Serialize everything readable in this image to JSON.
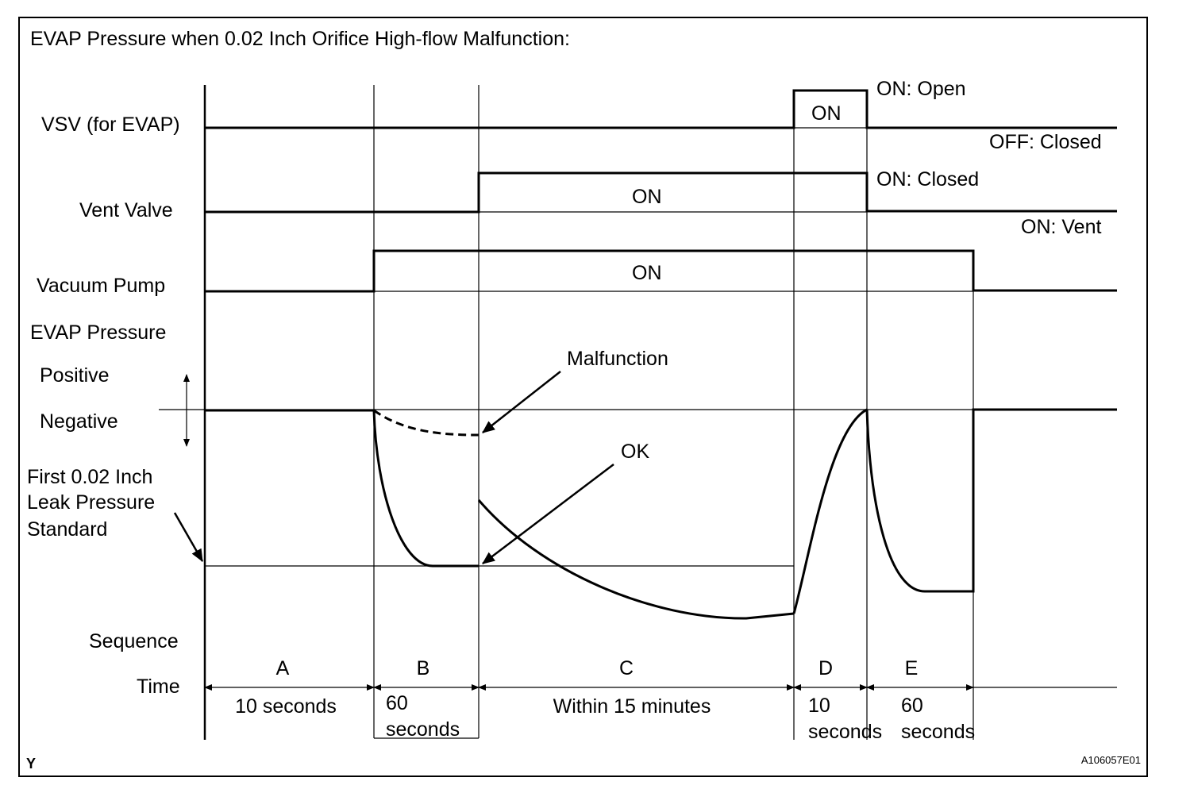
{
  "title": "EVAP Pressure when 0.02 Inch Orifice High-flow Malfunction:",
  "rows": {
    "vsv": "VSV (for EVAP)",
    "vent_valve": "Vent Valve",
    "vacuum_pump": "Vacuum Pump",
    "evap_pressure": "EVAP Pressure",
    "positive": "Positive",
    "negative": "Negative",
    "leak_standard_line1": "First 0.02 Inch",
    "leak_standard_line2": "Leak Pressure",
    "leak_standard_line3": "Standard",
    "sequence": "Sequence",
    "time": "Time"
  },
  "states": {
    "vsv_on": "ON",
    "vsv_on_note": "ON: Open",
    "vsv_off_note": "OFF: Closed",
    "vent_on": "ON",
    "vent_on_note": "ON: Closed",
    "vent_off_note": "ON: Vent",
    "pump_on": "ON"
  },
  "annotations": {
    "malfunction": "Malfunction",
    "ok": "OK"
  },
  "sequence": [
    {
      "label": "A",
      "time1": "10 seconds",
      "time2": ""
    },
    {
      "label": "B",
      "time1": "60",
      "time2": "seconds"
    },
    {
      "label": "C",
      "time1": "Within 15 minutes",
      "time2": ""
    },
    {
      "label": "D",
      "time1": "10",
      "time2": "seconds"
    },
    {
      "label": "E",
      "time1": "60",
      "time2": "seconds"
    }
  ],
  "footer": {
    "left": "Y",
    "right": "A106057E01"
  }
}
